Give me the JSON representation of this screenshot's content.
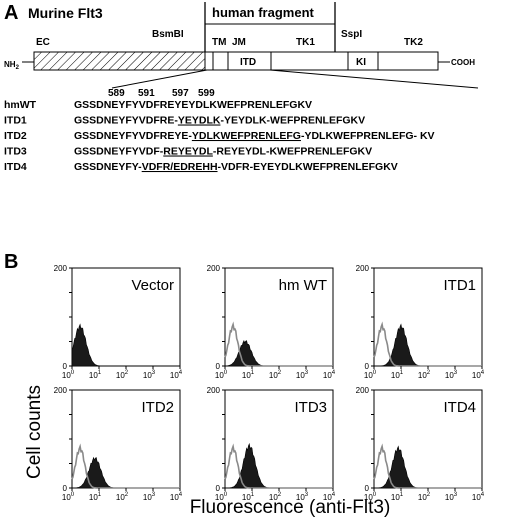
{
  "panel_a": {
    "letter": "A",
    "header_murine": "Murine  Flt3",
    "header_human": "human fragment",
    "site_bsmbi": "BsmBI",
    "site_sspi": "SspI",
    "domain_ec": "EC",
    "domain_tm": "TM",
    "domain_jm": "JM",
    "domain_itd": "ITD",
    "domain_tk1": "TK1",
    "domain_ki": "KI",
    "domain_tk2": "TK2",
    "nh2": "NH",
    "nh2_sub": "2",
    "cooh": "COOH",
    "positions": [
      "589",
      "591",
      "597",
      "599"
    ],
    "sequences": [
      {
        "label": "hmWT",
        "pre": "GSSDNEYFYVDFREYEYDLKWEFPRENLEFGKV",
        "dup": "",
        "post": ""
      },
      {
        "label": "ITD1",
        "pre": "GSSDNEYFYVDFRE-",
        "dup": "YEYDLK",
        "post": "-YEYDLK-WEFPRENLEFGKV"
      },
      {
        "label": "ITD2",
        "pre": "GSSDNEYFYVDFREYE-",
        "dup": "YDLKWEFPRENLEFG",
        "post": "-YDLKWEFPRENLEFG- KV"
      },
      {
        "label": "ITD3",
        "pre": "GSSDNEYFYVDF-",
        "dup": "REYEYDL",
        "post": "-REYEYDL-KWEFPRENLEFGKV"
      },
      {
        "label": "ITD4",
        "pre": "GSSDNEYFY-",
        "dup": "VDFR/EDREHH",
        "post": "-VDFR-EYEYDLKWEFPRENLEFGKV"
      }
    ]
  },
  "panel_b": {
    "letter": "B",
    "y_axis_title": "Cell counts",
    "x_axis_title": "Fluorescence (anti-Flt3)",
    "y_ticks": [
      "0",
      "50",
      "100",
      "150",
      "200"
    ],
    "x_tick_base": "10",
    "x_tick_exponents": [
      "0",
      "1",
      "2",
      "3",
      "4"
    ]
  },
  "chart_data": {
    "type": "histogram",
    "x_scale": "log",
    "xlim": [
      1,
      10000
    ],
    "ylim": [
      0,
      200
    ],
    "ylabel": "Cell counts",
    "xlabel": "Fluorescence (anti-Flt3)",
    "panels": [
      {
        "name": "Vector",
        "peak_log_x": 0.3,
        "peak_count": 80,
        "gray_peak_log_x": null,
        "gray_peak_count": null
      },
      {
        "name": "hm WT",
        "peak_log_x": 0.75,
        "peak_count": 50,
        "gray_peak_log_x": 0.3,
        "gray_peak_count": 80
      },
      {
        "name": "ITD1",
        "peak_log_x": 1.0,
        "peak_count": 80,
        "gray_peak_log_x": 0.3,
        "gray_peak_count": 80
      },
      {
        "name": "ITD2",
        "peak_log_x": 0.85,
        "peak_count": 60,
        "gray_peak_log_x": 0.3,
        "gray_peak_count": 80
      },
      {
        "name": "ITD3",
        "peak_log_x": 0.9,
        "peak_count": 85,
        "gray_peak_log_x": 0.3,
        "gray_peak_count": 80
      },
      {
        "name": "ITD4",
        "peak_log_x": 0.9,
        "peak_count": 80,
        "gray_peak_log_x": 0.3,
        "gray_peak_count": 80
      }
    ]
  }
}
